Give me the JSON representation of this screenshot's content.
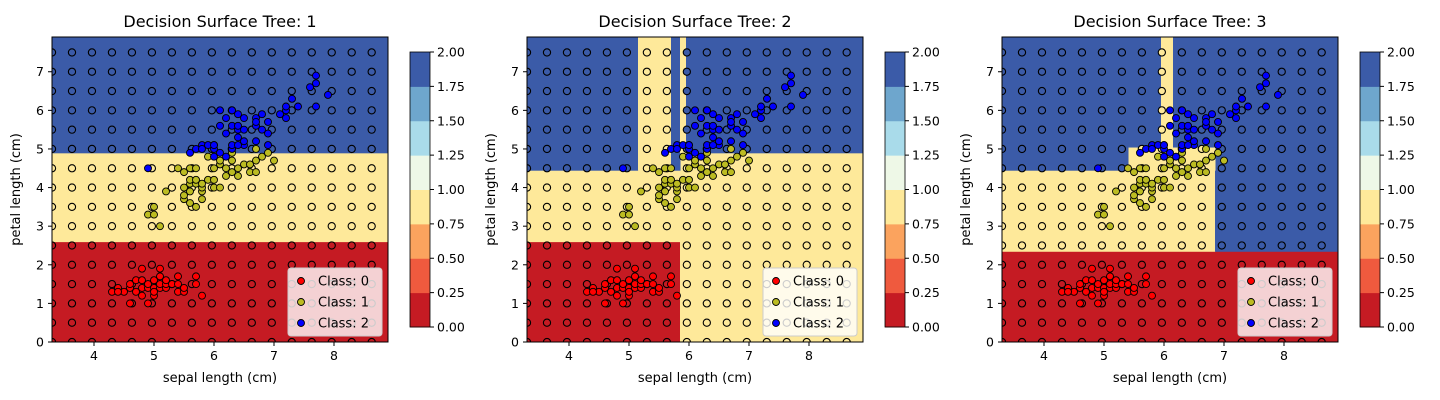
{
  "chart_data": [
    {
      "type": "scatter",
      "title": "Decision Surface Tree: 1",
      "xlabel": "sepal length (cm)",
      "ylabel": "petal length (cm)",
      "xlim": [
        3.3,
        8.9
      ],
      "ylim": [
        0,
        7.9
      ],
      "xticks": [
        "4",
        "5",
        "6",
        "7",
        "8"
      ],
      "yticks": [
        "0",
        "1",
        "2",
        "3",
        "4",
        "5",
        "6",
        "7"
      ],
      "regions": [
        {
          "x0": 3.3,
          "x1": 8.9,
          "y0": 0,
          "y1": 2.6,
          "class": 0
        },
        {
          "x0": 3.3,
          "x1": 8.9,
          "y0": 2.6,
          "y1": 4.9,
          "class": 1
        },
        {
          "x0": 3.3,
          "x1": 8.9,
          "y0": 4.9,
          "y1": 7.9,
          "class": 2
        }
      ],
      "legend": [
        "Class: 0",
        "Class: 1",
        "Class: 2"
      ],
      "legend_position": "lower right",
      "colorbar": {
        "ticks": [
          "0.00",
          "0.25",
          "0.50",
          "0.75",
          "1.00",
          "1.25",
          "1.50",
          "1.75",
          "2.00"
        ]
      }
    },
    {
      "type": "scatter",
      "title": "Decision Surface Tree: 2",
      "xlabel": "sepal length (cm)",
      "ylabel": "petal length (cm)",
      "xlim": [
        3.3,
        8.9
      ],
      "ylim": [
        0,
        7.9
      ],
      "xticks": [
        "4",
        "5",
        "6",
        "7",
        "8"
      ],
      "yticks": [
        "0",
        "1",
        "2",
        "3",
        "4",
        "5",
        "6",
        "7"
      ],
      "regions": [
        {
          "x0": 3.3,
          "x1": 5.85,
          "y0": 0,
          "y1": 2.6,
          "class": 0
        },
        {
          "x0": 5.85,
          "x1": 8.9,
          "y0": 0,
          "y1": 4.9,
          "class": 1
        },
        {
          "x0": 3.3,
          "x1": 5.85,
          "y0": 2.6,
          "y1": 4.45,
          "class": 1
        },
        {
          "x0": 3.3,
          "x1": 5.15,
          "y0": 4.45,
          "y1": 7.9,
          "class": 2
        },
        {
          "x0": 5.15,
          "x1": 5.7,
          "y0": 4.45,
          "y1": 7.9,
          "class": 1
        },
        {
          "x0": 5.7,
          "x1": 5.85,
          "y0": 4.45,
          "y1": 7.9,
          "class": 2
        },
        {
          "x0": 5.85,
          "x1": 5.95,
          "y0": 4.9,
          "y1": 7.9,
          "class": 1
        },
        {
          "x0": 5.95,
          "x1": 8.9,
          "y0": 4.9,
          "y1": 7.9,
          "class": 2
        }
      ],
      "legend": [
        "Class: 0",
        "Class: 1",
        "Class: 2"
      ],
      "legend_position": "lower right",
      "colorbar": {
        "ticks": [
          "0.00",
          "0.25",
          "0.50",
          "0.75",
          "1.00",
          "1.25",
          "1.50",
          "1.75",
          "2.00"
        ]
      }
    },
    {
      "type": "scatter",
      "title": "Decision Surface Tree: 3",
      "xlabel": "sepal length (cm)",
      "ylabel": "petal length (cm)",
      "xlim": [
        3.3,
        8.9
      ],
      "ylim": [
        0,
        7.9
      ],
      "xticks": [
        "4",
        "5",
        "6",
        "7",
        "8"
      ],
      "yticks": [
        "0",
        "1",
        "2",
        "3",
        "4",
        "5",
        "6",
        "7"
      ],
      "regions": [
        {
          "x0": 3.3,
          "x1": 8.9,
          "y0": 0,
          "y1": 2.35,
          "class": 0
        },
        {
          "x0": 3.3,
          "x1": 6.85,
          "y0": 2.35,
          "y1": 4.45,
          "class": 1
        },
        {
          "x0": 6.85,
          "x1": 8.9,
          "y0": 2.35,
          "y1": 5.05,
          "class": 2
        },
        {
          "x0": 5.4,
          "x1": 6.85,
          "y0": 4.45,
          "y1": 5.05,
          "class": 1
        },
        {
          "x0": 3.3,
          "x1": 5.4,
          "y0": 4.45,
          "y1": 7.9,
          "class": 2
        },
        {
          "x0": 5.4,
          "x1": 5.95,
          "y0": 5.05,
          "y1": 7.9,
          "class": 2
        },
        {
          "x0": 5.95,
          "x1": 6.15,
          "y0": 5.05,
          "y1": 7.9,
          "class": 1
        },
        {
          "x0": 6.15,
          "x1": 8.9,
          "y0": 5.05,
          "y1": 7.9,
          "class": 2
        }
      ],
      "legend": [
        "Class: 0",
        "Class: 1",
        "Class: 2"
      ],
      "legend_position": "lower right",
      "colorbar": {
        "ticks": [
          "0.00",
          "0.25",
          "0.50",
          "0.75",
          "1.00",
          "1.25",
          "1.50",
          "1.75",
          "2.00"
        ]
      }
    }
  ],
  "points": {
    "class0": [
      [
        4.3,
        1.3
      ],
      [
        4.4,
        1.4
      ],
      [
        4.5,
        1.3
      ],
      [
        4.6,
        1.4
      ],
      [
        4.6,
        1.5
      ],
      [
        4.7,
        1.3
      ],
      [
        4.7,
        1.6
      ],
      [
        4.8,
        1.4
      ],
      [
        4.8,
        1.6
      ],
      [
        4.8,
        1.9
      ],
      [
        4.9,
        1.4
      ],
      [
        4.9,
        1.5
      ],
      [
        5.0,
        1.2
      ],
      [
        5.0,
        1.4
      ],
      [
        5.0,
        1.6
      ],
      [
        5.1,
        1.4
      ],
      [
        5.1,
        1.5
      ],
      [
        5.1,
        1.7
      ],
      [
        5.1,
        1.9
      ],
      [
        5.2,
        1.4
      ],
      [
        5.2,
        1.5
      ],
      [
        5.3,
        1.5
      ],
      [
        5.4,
        1.3
      ],
      [
        5.4,
        1.5
      ],
      [
        5.4,
        1.7
      ],
      [
        5.5,
        1.3
      ],
      [
        5.5,
        1.4
      ],
      [
        5.7,
        1.5
      ],
      [
        5.7,
        1.7
      ],
      [
        5.8,
        1.2
      ],
      [
        4.4,
        1.3
      ],
      [
        4.9,
        1.0
      ],
      [
        4.6,
        1.0
      ],
      [
        5.0,
        1.3
      ],
      [
        4.8,
        1.2
      ],
      [
        5.2,
        1.6
      ]
    ],
    "class1": [
      [
        4.9,
        3.3
      ],
      [
        5.0,
        3.3
      ],
      [
        5.0,
        3.5
      ],
      [
        5.1,
        3.0
      ],
      [
        5.2,
        3.9
      ],
      [
        5.4,
        4.5
      ],
      [
        5.5,
        3.7
      ],
      [
        5.5,
        4.0
      ],
      [
        5.5,
        4.4
      ],
      [
        5.6,
        3.6
      ],
      [
        5.6,
        3.9
      ],
      [
        5.6,
        4.1
      ],
      [
        5.6,
        4.2
      ],
      [
        5.6,
        4.5
      ],
      [
        5.7,
        3.5
      ],
      [
        5.7,
        4.1
      ],
      [
        5.7,
        4.2
      ],
      [
        5.7,
        4.5
      ],
      [
        5.8,
        3.9
      ],
      [
        5.8,
        4.0
      ],
      [
        5.8,
        4.1
      ],
      [
        5.9,
        4.2
      ],
      [
        5.9,
        4.8
      ],
      [
        6.0,
        4.0
      ],
      [
        6.0,
        4.5
      ],
      [
        6.0,
        5.1
      ],
      [
        6.1,
        4.0
      ],
      [
        6.1,
        4.6
      ],
      [
        6.1,
        4.7
      ],
      [
        6.2,
        4.3
      ],
      [
        6.2,
        4.5
      ],
      [
        6.3,
        4.4
      ],
      [
        6.3,
        4.7
      ],
      [
        6.3,
        4.9
      ],
      [
        6.4,
        4.3
      ],
      [
        6.4,
        4.5
      ],
      [
        6.5,
        4.6
      ],
      [
        6.6,
        4.4
      ],
      [
        6.6,
        4.6
      ],
      [
        6.7,
        4.4
      ],
      [
        6.7,
        4.7
      ],
      [
        6.7,
        5.0
      ],
      [
        6.8,
        4.8
      ],
      [
        6.9,
        4.9
      ],
      [
        7.0,
        4.7
      ],
      [
        5.5,
        3.8
      ],
      [
        5.8,
        3.7
      ],
      [
        6.0,
        4.2
      ]
    ],
    "class2": [
      [
        4.9,
        4.5
      ],
      [
        5.6,
        4.9
      ],
      [
        5.7,
        5.0
      ],
      [
        5.8,
        5.1
      ],
      [
        5.9,
        5.1
      ],
      [
        6.0,
        4.8
      ],
      [
        6.1,
        4.9
      ],
      [
        6.2,
        4.8
      ],
      [
        6.3,
        5.0
      ],
      [
        6.3,
        5.1
      ],
      [
        6.3,
        5.6
      ],
      [
        6.4,
        5.3
      ],
      [
        6.4,
        5.5
      ],
      [
        6.4,
        5.6
      ],
      [
        6.5,
        5.1
      ],
      [
        6.5,
        5.2
      ],
      [
        6.5,
        5.5
      ],
      [
        6.7,
        5.2
      ],
      [
        6.7,
        5.6
      ],
      [
        6.8,
        5.5
      ],
      [
        6.9,
        5.1
      ],
      [
        6.9,
        5.4
      ],
      [
        6.9,
        5.7
      ],
      [
        7.1,
        5.9
      ],
      [
        7.2,
        5.8
      ],
      [
        7.2,
        6.0
      ],
      [
        7.3,
        6.3
      ],
      [
        7.4,
        6.1
      ],
      [
        7.6,
        6.6
      ],
      [
        7.7,
        6.7
      ],
      [
        7.7,
        6.9
      ],
      [
        7.9,
        6.4
      ],
      [
        6.2,
        5.4
      ],
      [
        6.0,
        5.0
      ],
      [
        5.8,
        5.0
      ],
      [
        6.5,
        5.8
      ],
      [
        6.4,
        5.9
      ],
      [
        6.1,
        6.0
      ],
      [
        6.7,
        5.8
      ],
      [
        6.3,
        6.0
      ],
      [
        6.8,
        5.9
      ],
      [
        7.2,
        6.1
      ],
      [
        7.7,
        6.1
      ],
      [
        6.2,
        5.8
      ],
      [
        6.0,
        5.1
      ],
      [
        6.1,
        5.6
      ],
      [
        6.4,
        5.1
      ],
      [
        6.7,
        5.7
      ]
    ]
  },
  "colors": {
    "class0": "#c51b23",
    "class1": "#fee99a",
    "class2": "#3b5ba8",
    "marker0": "#ff0000",
    "marker1": "#bcbc22",
    "marker2": "#0000ff",
    "cbar": [
      "#c51b23",
      "#ef5a3e",
      "#fba35e",
      "#fee99a",
      "#eef8e7",
      "#a9dbea",
      "#6ea6cd",
      "#3b5ba8"
    ]
  }
}
